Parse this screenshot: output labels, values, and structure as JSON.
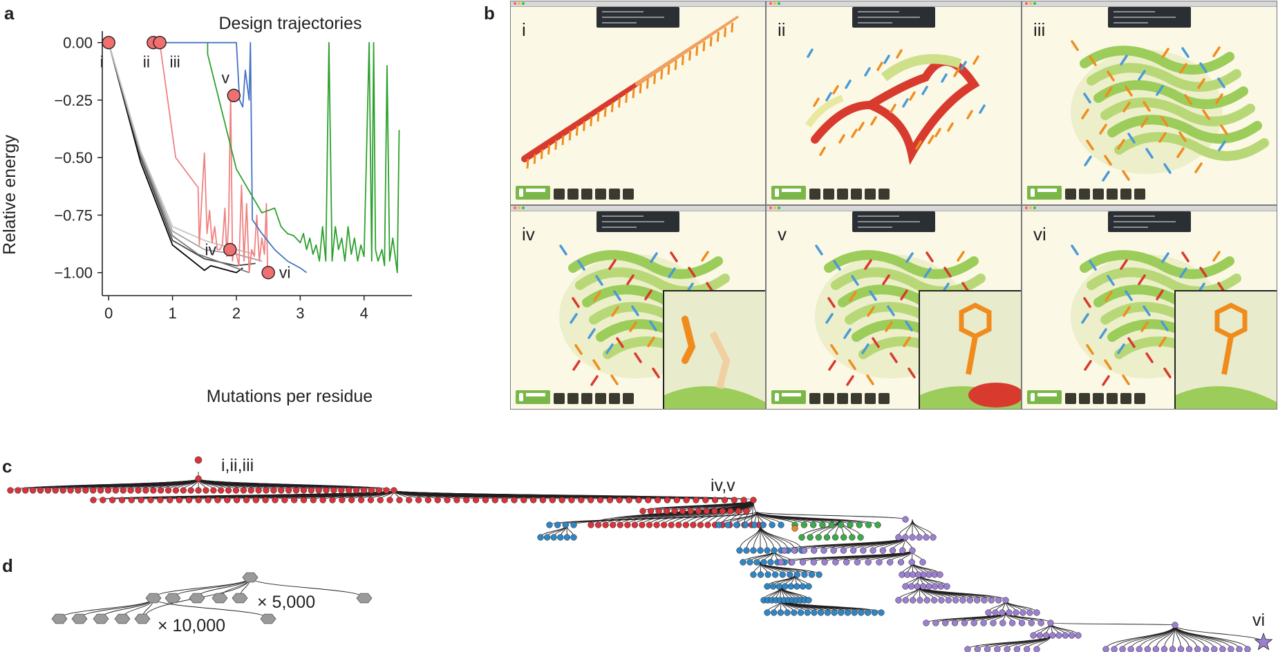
{
  "panel_letters": {
    "a": "a",
    "b": "b",
    "c": "c",
    "d": "d"
  },
  "chart_data": {
    "type": "line",
    "title": "Design trajectories",
    "xlabel": "Mutations per residue",
    "ylabel": "Relative energy",
    "xlim": [
      -0.1,
      4.75
    ],
    "ylim": [
      -1.1,
      0.05
    ],
    "xticks": [
      "0",
      "1",
      "2",
      "3",
      "4"
    ],
    "yticks": [
      "0.00",
      "−0.25",
      "−0.50",
      "−0.75",
      "−1.00"
    ],
    "grid": false,
    "series": [
      {
        "color": "#000000",
        "values": [
          [
            0,
            0
          ],
          [
            0.5,
            -0.52
          ],
          [
            1.0,
            -0.88
          ],
          [
            1.5,
            -0.99
          ],
          [
            1.6,
            -0.97
          ],
          [
            2.0,
            -1.0
          ],
          [
            2.1,
            -0.98
          ]
        ]
      },
      {
        "color": "#444444",
        "values": [
          [
            0,
            0
          ],
          [
            0.5,
            -0.5
          ],
          [
            1.0,
            -0.86
          ],
          [
            1.5,
            -0.94
          ],
          [
            2.0,
            -0.97
          ],
          [
            2.3,
            -0.96
          ]
        ]
      },
      {
        "color": "#777777",
        "values": [
          [
            0,
            0
          ],
          [
            0.5,
            -0.49
          ],
          [
            1.0,
            -0.84
          ],
          [
            1.4,
            -0.92
          ],
          [
            1.8,
            -0.96
          ],
          [
            2.2,
            -1.0
          ]
        ]
      },
      {
        "color": "#a0a0a0",
        "values": [
          [
            0,
            0
          ],
          [
            0.5,
            -0.48
          ],
          [
            1.0,
            -0.82
          ],
          [
            1.5,
            -0.9
          ],
          [
            2.0,
            -0.92
          ],
          [
            2.4,
            -0.95
          ]
        ]
      },
      {
        "color": "#c4c4c4",
        "values": [
          [
            0,
            0
          ],
          [
            0.5,
            -0.47
          ],
          [
            1.0,
            -0.8
          ],
          [
            1.5,
            -0.86
          ],
          [
            2.0,
            -0.9
          ],
          [
            2.3,
            -0.92
          ]
        ]
      },
      {
        "color": "#f08080",
        "values": [
          [
            0.7,
            0
          ],
          [
            0.8,
            0
          ],
          [
            1.05,
            -0.5
          ],
          [
            1.4,
            -0.63
          ],
          [
            1.42,
            -0.88
          ],
          [
            1.46,
            -0.67
          ],
          [
            1.5,
            -0.48
          ],
          [
            1.54,
            -0.83
          ],
          [
            1.58,
            -0.73
          ],
          [
            1.62,
            -0.87
          ],
          [
            1.66,
            -0.8
          ],
          [
            1.7,
            -0.9
          ],
          [
            1.74,
            -0.9
          ],
          [
            1.78,
            -0.88
          ],
          [
            1.82,
            -0.72
          ],
          [
            1.85,
            -0.93
          ],
          [
            1.88,
            -0.77
          ],
          [
            1.91,
            -0.22
          ],
          [
            1.94,
            -0.95
          ],
          [
            1.97,
            -0.88
          ],
          [
            2.0,
            -0.92
          ],
          [
            2.04,
            -0.97
          ],
          [
            2.08,
            -0.62
          ],
          [
            2.12,
            -0.95
          ],
          [
            2.16,
            -0.7
          ],
          [
            2.2,
            -1.0
          ],
          [
            2.24,
            -0.9
          ],
          [
            2.28,
            -0.93
          ],
          [
            2.32,
            -0.75
          ],
          [
            2.36,
            -0.95
          ],
          [
            2.4,
            -0.85
          ],
          [
            2.44,
            -0.92
          ],
          [
            2.47,
            -0.7
          ],
          [
            2.49,
            -1.0
          ]
        ]
      },
      {
        "color": "#4472c4",
        "values": [
          [
            0.8,
            0
          ],
          [
            2.0,
            0
          ],
          [
            2.05,
            -0.25
          ],
          [
            2.1,
            -0.28
          ],
          [
            2.14,
            -0.12
          ],
          [
            2.2,
            -0.25
          ],
          [
            2.22,
            0
          ],
          [
            2.25,
            -0.77
          ],
          [
            2.4,
            -0.83
          ],
          [
            2.6,
            -0.9
          ],
          [
            2.8,
            -0.95
          ],
          [
            3.0,
            -0.98
          ],
          [
            3.1,
            -1.0
          ]
        ]
      },
      {
        "color": "#2ca02c",
        "values": [
          [
            1.55,
            0
          ],
          [
            1.55,
            -0.05
          ],
          [
            2.0,
            -0.55
          ],
          [
            2.4,
            -0.74
          ],
          [
            2.6,
            -0.72
          ],
          [
            2.7,
            -0.8
          ],
          [
            2.8,
            -0.83
          ],
          [
            2.9,
            -0.84
          ],
          [
            3.0,
            -0.87
          ],
          [
            3.05,
            -0.83
          ],
          [
            3.1,
            -0.9
          ],
          [
            3.15,
            -0.85
          ],
          [
            3.2,
            -0.92
          ],
          [
            3.25,
            -0.88
          ],
          [
            3.3,
            -0.95
          ],
          [
            3.35,
            -0.8
          ],
          [
            3.4,
            -0.95
          ],
          [
            3.45,
            0
          ],
          [
            3.5,
            -0.95
          ],
          [
            3.55,
            -0.8
          ],
          [
            3.6,
            -0.9
          ],
          [
            3.65,
            -0.85
          ],
          [
            3.7,
            -0.95
          ],
          [
            3.75,
            -0.8
          ],
          [
            3.8,
            -0.92
          ],
          [
            3.85,
            -0.85
          ],
          [
            3.9,
            -0.95
          ],
          [
            3.95,
            -0.88
          ],
          [
            4.0,
            -0.93
          ],
          [
            4.08,
            0
          ],
          [
            4.12,
            -0.95
          ],
          [
            4.15,
            0
          ],
          [
            4.18,
            -0.9
          ],
          [
            4.22,
            -0.95
          ],
          [
            4.28,
            -0.9
          ],
          [
            4.32,
            -0.97
          ],
          [
            4.36,
            -0.1
          ],
          [
            4.4,
            -0.95
          ],
          [
            4.45,
            -0.85
          ],
          [
            4.52,
            -1.0
          ],
          [
            4.55,
            -0.38
          ]
        ]
      }
    ],
    "markers": [
      {
        "label": "i",
        "x": 0.0,
        "y": 0.0
      },
      {
        "label": "ii",
        "x": 0.7,
        "y": 0.0
      },
      {
        "label": "iii",
        "x": 0.8,
        "y": 0.0
      },
      {
        "label": "iv",
        "x": 1.9,
        "y": -0.9
      },
      {
        "label": "v",
        "x": 1.96,
        "y": -0.23
      },
      {
        "label": "vi",
        "x": 2.5,
        "y": -1.0
      }
    ],
    "marker_color": "#f07070"
  },
  "panel_b": {
    "windows": [
      {
        "numeral": "i"
      },
      {
        "numeral": "ii"
      },
      {
        "numeral": "iii"
      },
      {
        "numeral": "iv"
      },
      {
        "numeral": "v"
      },
      {
        "numeral": "vi"
      }
    ]
  },
  "panel_c": {
    "labels": [
      "i,ii,iii",
      "iv,v",
      "vi"
    ],
    "node_colors": {
      "red": "#d8333a",
      "blue": "#2f86c4",
      "green": "#3aaa4a",
      "purple": "#9b7fd0",
      "orange": "#e8862a"
    }
  },
  "panel_d": {
    "label_a": "× 5,000",
    "label_b": "× 10,000",
    "node_color": "#9a9a9a"
  }
}
